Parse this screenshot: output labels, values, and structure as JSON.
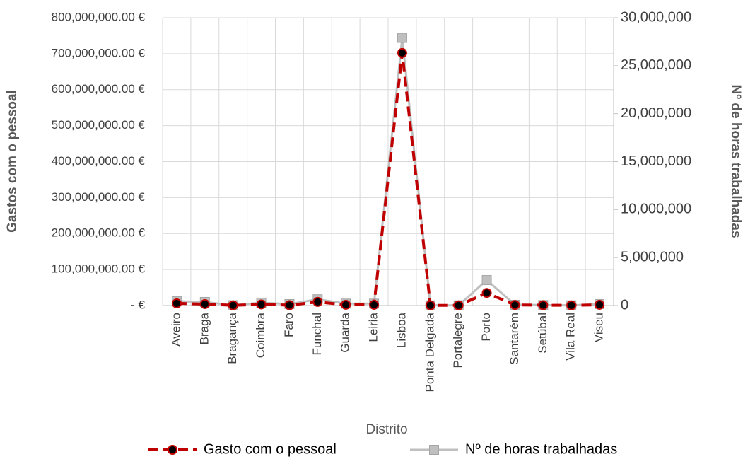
{
  "chart_data": {
    "type": "line",
    "x_label": "Distrito",
    "y_label": "Gastos com o pessoal",
    "y2_label": "Nº de horas trabalhadas",
    "categories": [
      "Aveiro",
      "Braga",
      "Bragança",
      "Coimbra",
      "Faro",
      "Funchal",
      "Guarda",
      "Leiria",
      "Lisboa",
      "Ponta Delgada",
      "Portalegre",
      "Porto",
      "Santarém",
      "Setúbal",
      "Vila Real",
      "Viseu"
    ],
    "series": [
      {
        "name": "Gasto com o pessoal",
        "color": "#c00000",
        "axis": "y",
        "values": [
          6000000,
          4000000,
          500000,
          3000000,
          1000000,
          10000000,
          2000000,
          2000000,
          702000000,
          500000,
          500000,
          35000000,
          1500000,
          1000000,
          500000,
          2000000
        ]
      },
      {
        "name": "Nº de horas trabalhadas",
        "color": "#bfbfbf",
        "axis": "y2",
        "values": [
          450000,
          370000,
          30000,
          300000,
          150000,
          650000,
          200000,
          200000,
          27900000,
          20000,
          20000,
          2650000,
          80000,
          50000,
          20000,
          150000
        ]
      }
    ],
    "ylim": [
      0,
      800000000
    ],
    "yticks": [
      {
        "value": 0,
        "label": "-   €"
      },
      {
        "value": 100000000,
        "label": "100,000,000.00 €"
      },
      {
        "value": 200000000,
        "label": "200,000,000.00 €"
      },
      {
        "value": 300000000,
        "label": "300,000,000.00 €"
      },
      {
        "value": 400000000,
        "label": "400,000,000.00 €"
      },
      {
        "value": 500000000,
        "label": "500,000,000.00 €"
      },
      {
        "value": 600000000,
        "label": "600,000,000.00 €"
      },
      {
        "value": 700000000,
        "label": "700,000,000.00 €"
      },
      {
        "value": 800000000,
        "label": "800,000,000.00 €"
      }
    ],
    "y2lim": [
      0,
      30000000
    ],
    "y2ticks": [
      0,
      {
        "value": 5000000,
        "label": "5,000,000"
      },
      {
        "value": 10000000,
        "label": "10,000,000"
      },
      {
        "value": 15000000,
        "label": "15,000,000"
      },
      {
        "value": 20000000,
        "label": "20,000,000"
      },
      {
        "value": 25000000,
        "label": "25,000,000"
      },
      {
        "value": 30000000,
        "label": "30,000,000"
      }
    ],
    "grid": true,
    "legend": "bottom"
  }
}
